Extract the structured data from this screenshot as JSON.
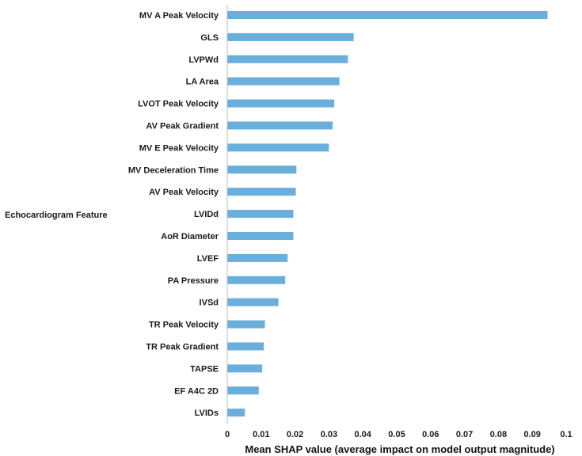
{
  "chart_data": {
    "type": "bar",
    "orientation": "horizontal",
    "title": "",
    "xlabel": "Mean SHAP value (average impact on model output magnitude)",
    "ylabel": "Echocardiogram Feature",
    "xlim": [
      0,
      0.1
    ],
    "x_ticks": [
      "0",
      "0.01",
      "0.02",
      "0.03",
      "0.04",
      "0.05",
      "0.06",
      "0.07",
      "0.08",
      "0.09",
      "0.1"
    ],
    "grid": false,
    "legend": "none",
    "bar_color": "#6aaedc",
    "categories": [
      "MV A Peak Velocity",
      "GLS",
      "LVPWd",
      "LA Area",
      "LVOT Peak Velocity",
      "AV Peak Gradient",
      "MV E Peak Velocity",
      "MV Deceleration Time",
      "AV Peak Velocity",
      "LVIDd",
      "AoR Diameter",
      "LVEF",
      "PA Pressure",
      "IVSd",
      "TR Peak Velocity",
      "TR Peak Gradient",
      "TAPSE",
      "EF A4C 2D",
      "LVIDs"
    ],
    "values": [
      0.0945,
      0.0373,
      0.0356,
      0.0331,
      0.0316,
      0.0311,
      0.03,
      0.0204,
      0.0202,
      0.0195,
      0.0195,
      0.0178,
      0.0171,
      0.0151,
      0.0111,
      0.0108,
      0.0103,
      0.0093,
      0.0052
    ]
  }
}
